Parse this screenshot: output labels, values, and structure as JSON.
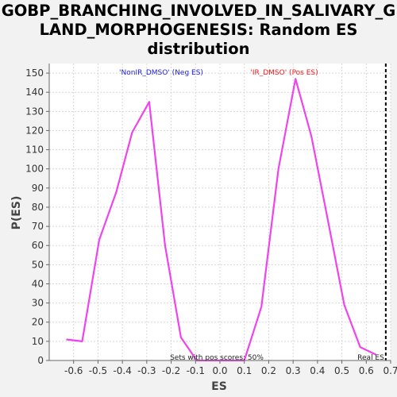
{
  "chart_data": {
    "type": "line",
    "title_lines": [
      "GOBP_BRANCHING_INVOLVED_IN_SALIVARY_G",
      "LAND_MORPHOGENESIS: Random ES",
      "distribution"
    ],
    "xlabel": "ES",
    "ylabel": "P(ES)",
    "xlim": [
      -0.7,
      0.7
    ],
    "ylim": [
      0,
      155
    ],
    "x_ticks": [
      -0.6,
      -0.5,
      -0.4,
      -0.3,
      -0.2,
      -0.1,
      0.0,
      0.1,
      0.2,
      0.3,
      0.4,
      0.5,
      0.6,
      0.7
    ],
    "x_tick_labels": [
      "-0.6",
      "-0.5",
      "-0.4",
      "-0.3",
      "-0.2",
      "-0.1",
      "0.0",
      "0.1",
      "0.2",
      "0.3",
      "0.4",
      "0.5",
      "0.6",
      "0.7"
    ],
    "y_ticks": [
      0,
      10,
      20,
      30,
      40,
      50,
      60,
      70,
      80,
      90,
      100,
      110,
      120,
      130,
      140,
      150
    ],
    "y_tick_labels": [
      "0",
      "10",
      "20",
      "30",
      "40",
      "50",
      "60",
      "70",
      "80",
      "90",
      "100",
      "110",
      "120",
      "130",
      "140",
      "150"
    ],
    "grid": true,
    "series": [
      {
        "color": "#ee44ee",
        "x": [
          -0.63,
          -0.565,
          -0.495,
          -0.425,
          -0.36,
          -0.29,
          -0.225,
          -0.16,
          -0.095,
          -0.03,
          0.035,
          0.1,
          0.17,
          0.24,
          0.31,
          0.375,
          0.44,
          0.51,
          0.575,
          0.64
        ],
        "y": [
          11,
          10,
          63,
          88,
          119,
          135,
          60,
          12,
          0,
          0,
          0,
          0,
          28,
          100,
          147,
          117,
          75,
          29,
          7,
          3
        ]
      }
    ],
    "real_es": 0.68,
    "annotations": {
      "neg_label": "'NonIR_DMSO' (Neg ES)",
      "pos_label": "'IR_DMSO' (Pos ES)",
      "pos_scores": "Sets with pos scores: 50%",
      "real_es_label": "Real ES"
    },
    "colors": {
      "series": "#ee44ee",
      "neg_label": "#1a1aee",
      "pos_label": "#ee1a1a",
      "real_es_line": "#000000"
    }
  }
}
